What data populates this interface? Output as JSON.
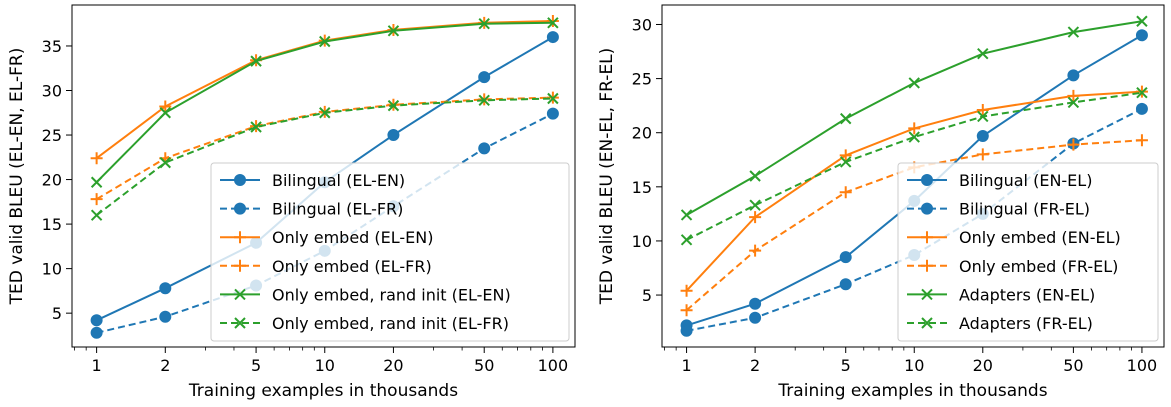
{
  "chart_data": [
    {
      "type": "line",
      "xscale": "log",
      "x": [
        1,
        2,
        5,
        10,
        20,
        50,
        100
      ],
      "xticklabels": [
        "1",
        "2",
        "5",
        "10",
        "20",
        "50",
        "100"
      ],
      "yticks": [
        5,
        10,
        15,
        20,
        25,
        30,
        35
      ],
      "ylim": [
        1.2,
        39.6
      ],
      "xlim": [
        0.78,
        125
      ],
      "xlabel": "Training examples in thousands",
      "ylabel": "TED valid BLEU (EL-EN, EL-FR)",
      "legend_position": "lower-right",
      "series": [
        {
          "name": "Bilingual (EL-EN)",
          "color": "#1f77b4",
          "dash": "solid",
          "marker": "circle",
          "values": [
            4.2,
            7.8,
            12.9,
            19.7,
            25.0,
            31.5,
            36.0
          ]
        },
        {
          "name": "Bilingual (EL-FR)",
          "color": "#1f77b4",
          "dash": "dashed",
          "marker": "circle",
          "values": [
            2.8,
            4.6,
            8.1,
            12.0,
            17.0,
            23.5,
            27.4
          ]
        },
        {
          "name": "Only embed (EL-EN)",
          "color": "#ff7f0e",
          "dash": "solid",
          "marker": "plus",
          "values": [
            22.4,
            28.2,
            33.4,
            35.6,
            36.8,
            37.6,
            37.8
          ]
        },
        {
          "name": "Only embed (EL-FR)",
          "color": "#ff7f0e",
          "dash": "dashed",
          "marker": "plus",
          "values": [
            17.8,
            22.4,
            26.0,
            27.6,
            28.4,
            29.0,
            29.2
          ]
        },
        {
          "name": "Only embed, rand init (EL-EN)",
          "color": "#2ca02c",
          "dash": "solid",
          "marker": "x",
          "values": [
            19.7,
            27.5,
            33.3,
            35.5,
            36.7,
            37.5,
            37.6
          ]
        },
        {
          "name": "Only embed, rand init (EL-FR)",
          "color": "#2ca02c",
          "dash": "dashed",
          "marker": "x",
          "values": [
            16.0,
            21.9,
            25.9,
            27.5,
            28.3,
            28.9,
            29.1
          ]
        }
      ]
    },
    {
      "type": "line",
      "xscale": "log",
      "x": [
        1,
        2,
        5,
        10,
        20,
        50,
        100
      ],
      "xticklabels": [
        "1",
        "2",
        "5",
        "10",
        "20",
        "50",
        "100"
      ],
      "yticks": [
        5,
        10,
        15,
        20,
        25,
        30
      ],
      "ylim": [
        0.2,
        31.8
      ],
      "xlim": [
        0.78,
        125
      ],
      "xlabel": "Training examples in thousands",
      "ylabel": "TED valid BLEU (EN-EL, FR-EL)",
      "legend_position": "lower-right",
      "series": [
        {
          "name": "Bilingual (EN-EL)",
          "color": "#1f77b4",
          "dash": "solid",
          "marker": "circle",
          "values": [
            2.2,
            4.2,
            8.5,
            13.7,
            19.7,
            25.3,
            29.0
          ]
        },
        {
          "name": "Bilingual (FR-EL)",
          "color": "#1f77b4",
          "dash": "dashed",
          "marker": "circle",
          "values": [
            1.7,
            2.9,
            6.0,
            8.7,
            12.5,
            19.0,
            22.2
          ]
        },
        {
          "name": "Only embed (EN-EL)",
          "color": "#ff7f0e",
          "dash": "solid",
          "marker": "plus",
          "values": [
            5.4,
            12.2,
            17.9,
            20.4,
            22.1,
            23.4,
            23.8
          ]
        },
        {
          "name": "Only embed (FR-EL)",
          "color": "#ff7f0e",
          "dash": "dashed",
          "marker": "plus",
          "values": [
            3.6,
            9.1,
            14.5,
            16.8,
            18.0,
            18.9,
            19.3
          ]
        },
        {
          "name": "Adapters (EN-EL)",
          "color": "#2ca02c",
          "dash": "solid",
          "marker": "x",
          "values": [
            12.4,
            16.0,
            21.3,
            24.6,
            27.3,
            29.3,
            30.3
          ]
        },
        {
          "name": "Adapters (FR-EL)",
          "color": "#2ca02c",
          "dash": "dashed",
          "marker": "x",
          "values": [
            10.1,
            13.3,
            17.3,
            19.6,
            21.5,
            22.8,
            23.7
          ]
        }
      ]
    }
  ]
}
